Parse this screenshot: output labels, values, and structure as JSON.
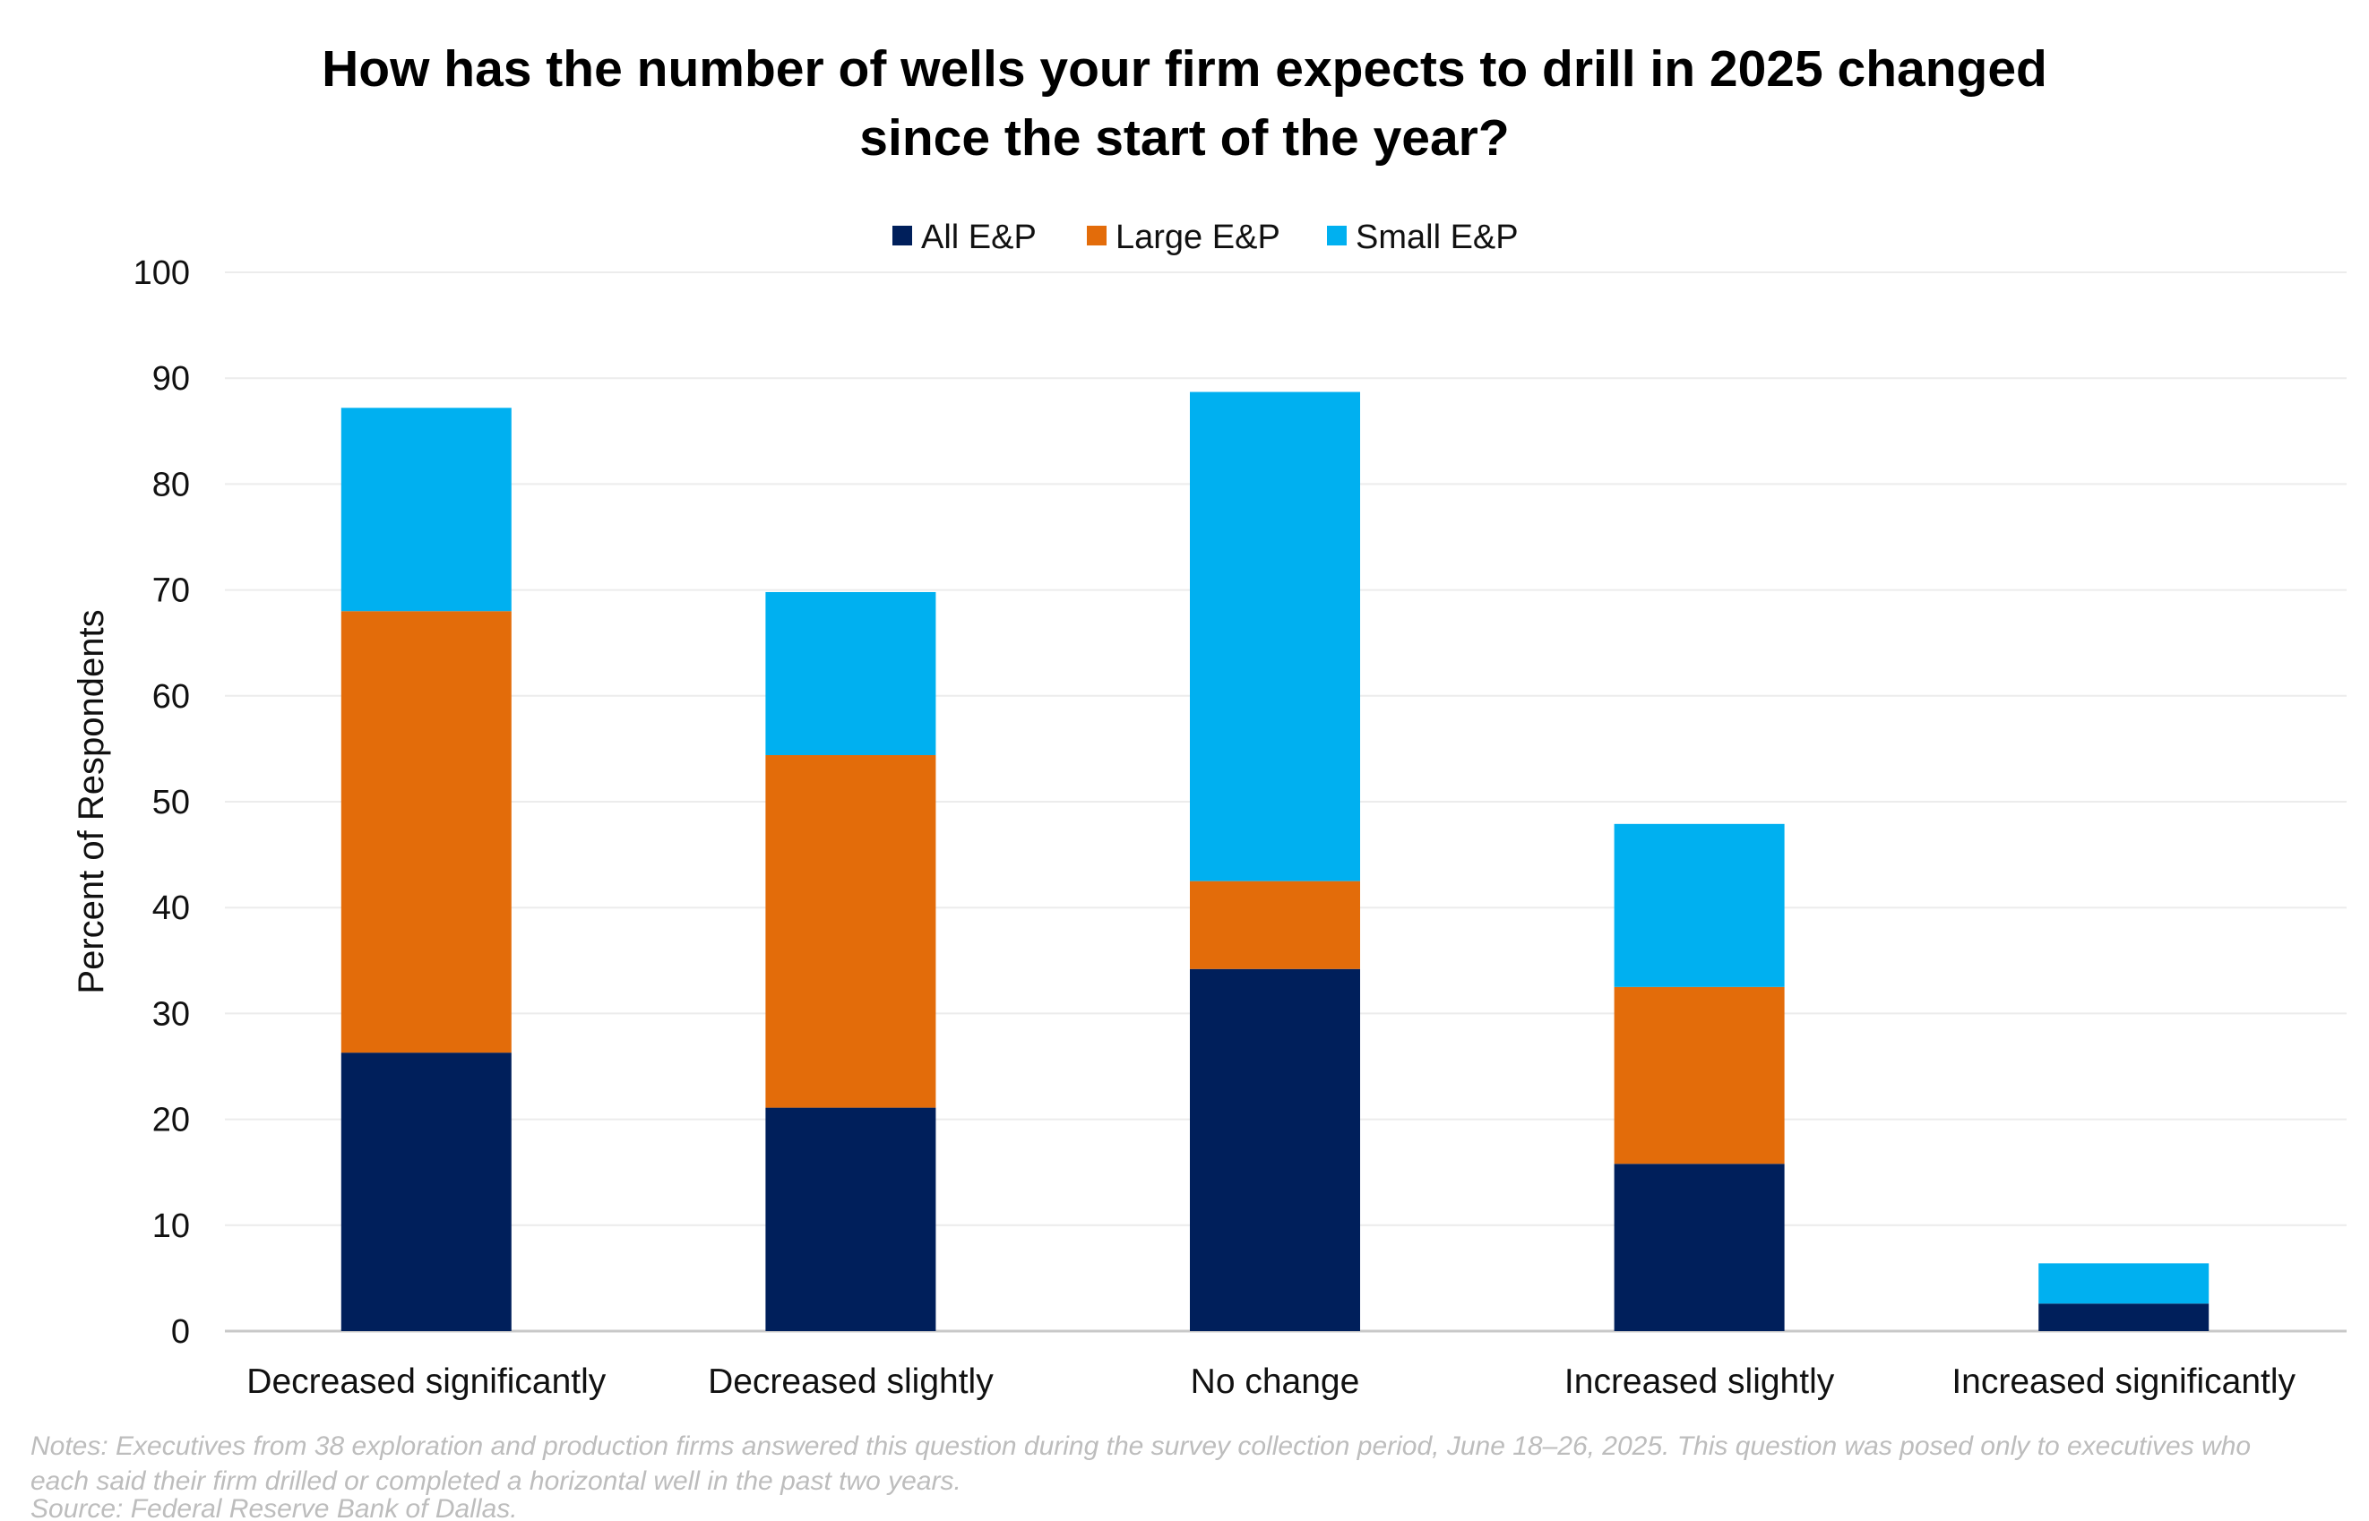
{
  "chart_data": {
    "type": "bar",
    "stacked": true,
    "title": [
      "How has the number of wells your firm expects to drill in 2025 changed",
      "since the start of the year?"
    ],
    "xlabel": "",
    "ylabel": "Percent of Respondents",
    "ylim": [
      0,
      100
    ],
    "yticks": [
      0,
      10,
      20,
      30,
      40,
      50,
      60,
      70,
      80,
      90,
      100
    ],
    "grid": true,
    "legend_position": "top",
    "categories": [
      "Decreased significantly",
      "Decreased slightly",
      "No change",
      "Increased slightly",
      "Increased significantly"
    ],
    "series": [
      {
        "name": "All E&P",
        "color": "#001f5b",
        "values": [
          26.3,
          21.1,
          34.2,
          15.8,
          2.6
        ]
      },
      {
        "name": "Large E&P",
        "color": "#e36c0a",
        "values": [
          41.7,
          33.3,
          8.3,
          16.7,
          0
        ]
      },
      {
        "name": "Small E&P",
        "color": "#00b0f0",
        "values": [
          19.2,
          15.4,
          46.2,
          15.4,
          3.8
        ]
      }
    ],
    "notes": [
      "Notes: Executives from 38 exploration and production firms answered this question during the survey collection period, June 18–26, 2025. This question was posed only to executives who",
      "each said their firm drilled or completed a horizontal well in the past two years.",
      "Source: Federal Reserve Bank of Dallas."
    ]
  }
}
